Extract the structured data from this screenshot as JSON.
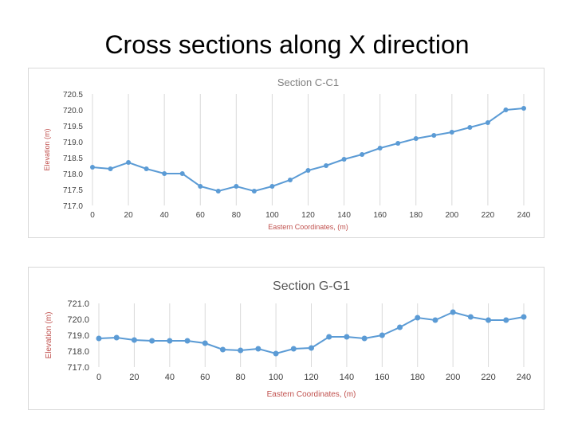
{
  "slide": {
    "title": "Cross sections along X direction"
  },
  "chart_data": [
    {
      "type": "line",
      "title": "Section C-C1",
      "xlabel": "Eastern Coordinates, (m)",
      "ylabel": "Elevation (m)",
      "xlim": [
        0,
        240
      ],
      "ylim": [
        717.0,
        720.5
      ],
      "x_ticks": [
        "0",
        "20",
        "40",
        "60",
        "80",
        "100",
        "120",
        "140",
        "160",
        "180",
        "200",
        "220",
        "240"
      ],
      "y_ticks": [
        "717.0",
        "717.5",
        "718.0",
        "718.5",
        "719.0",
        "719.5",
        "720.0",
        "720.5"
      ],
      "grid": "vertical",
      "series_color": "#5b9bd5",
      "title_color": "#7f7f7f",
      "label_color": "#c0504d",
      "x": [
        0,
        10,
        20,
        30,
        40,
        50,
        60,
        70,
        80,
        90,
        100,
        110,
        120,
        130,
        140,
        150,
        160,
        170,
        180,
        190,
        200,
        210,
        220,
        230,
        240
      ],
      "series": [
        {
          "values": [
            718.2,
            718.15,
            718.35,
            718.15,
            718.0,
            718.0,
            717.6,
            717.45,
            717.6,
            717.45,
            717.6,
            717.8,
            718.1,
            718.25,
            718.45,
            718.6,
            718.8,
            718.95,
            719.1,
            719.2,
            719.3,
            719.45,
            719.6,
            720.0,
            720.05
          ]
        }
      ]
    },
    {
      "type": "line",
      "title": "Section G-G1",
      "xlabel": "Eastern Coordinates, (m)",
      "ylabel": "Elevation (m)",
      "xlim": [
        0,
        240
      ],
      "ylim": [
        717.0,
        721.0
      ],
      "x_ticks": [
        "0",
        "20",
        "40",
        "60",
        "80",
        "100",
        "120",
        "140",
        "160",
        "180",
        "200",
        "220",
        "240"
      ],
      "y_ticks": [
        "717.0",
        "718.0",
        "719.0",
        "720.0",
        "721.0"
      ],
      "grid": "vertical",
      "series_color": "#5b9bd5",
      "title_color": "#595959",
      "label_color": "#c0504d",
      "x": [
        0,
        10,
        20,
        30,
        40,
        50,
        60,
        70,
        80,
        90,
        100,
        110,
        120,
        130,
        140,
        150,
        160,
        170,
        180,
        190,
        200,
        210,
        220,
        230,
        240
      ],
      "series": [
        {
          "values": [
            718.8,
            718.85,
            718.7,
            718.65,
            718.65,
            718.65,
            718.5,
            718.1,
            718.05,
            718.15,
            717.85,
            718.15,
            718.2,
            718.9,
            718.9,
            718.8,
            719.0,
            719.5,
            720.1,
            719.95,
            720.45,
            720.15,
            719.95,
            719.95,
            720.15
          ]
        }
      ]
    }
  ]
}
